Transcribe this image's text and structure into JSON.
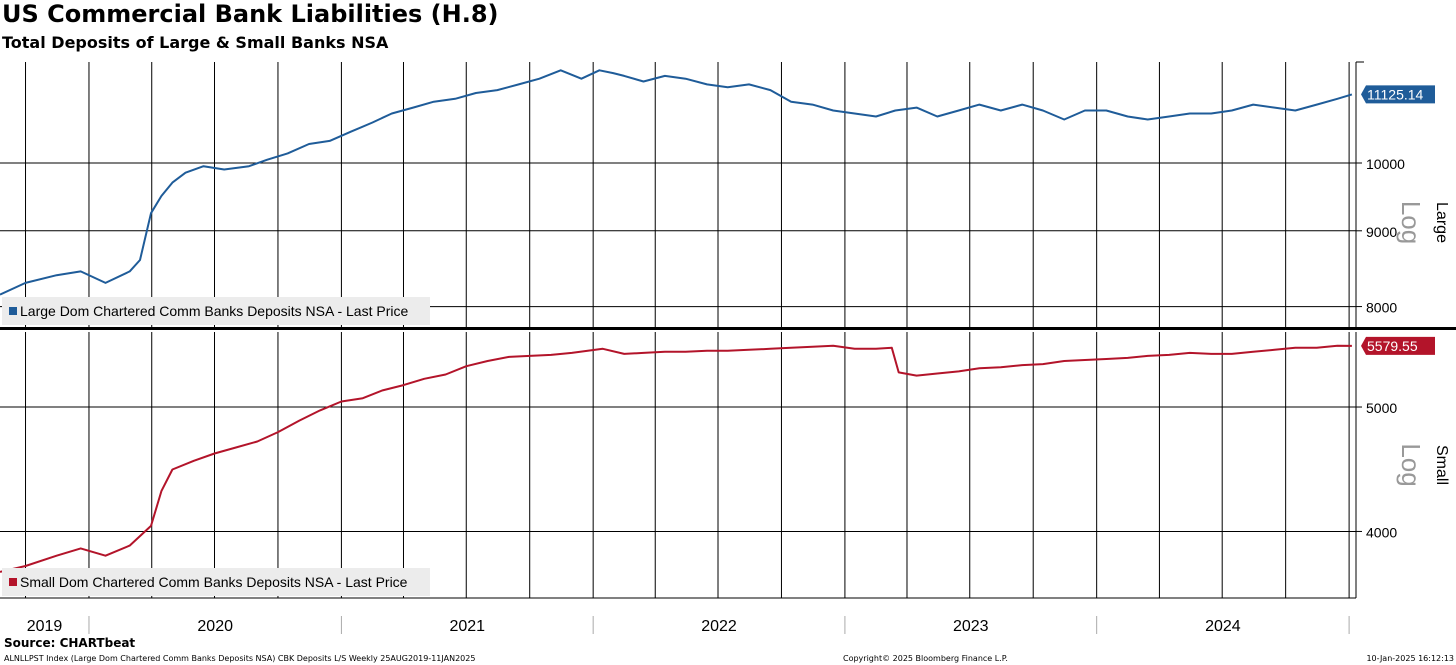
{
  "title": "US Commercial Bank Liabilities (H.8)",
  "subtitle": "Total Deposits of Large & Small Banks NSA",
  "source": "Source: CHARTbeat",
  "footer": {
    "ticker": "ALNLLPST Index (Large Dom Chartered Comm Banks Deposits NSA) CBK Deposits L/S  Weekly 25AUG2019-11JAN2025",
    "copyright": "Copyright© 2025 Bloomberg Finance L.P.",
    "date": "10-Jan-2025 16:12:13"
  },
  "chart_data": [
    {
      "type": "line",
      "panel": "Large",
      "scale_label": "Log",
      "log_scale": true,
      "grid": true,
      "legend_position": "bottom-left",
      "ylim": [
        7750,
        11700
      ],
      "y_ticks": [
        8000,
        9000,
        10000
      ],
      "x_labels": [
        "2019",
        "2020",
        "2021",
        "2022",
        "2023",
        "2024"
      ],
      "last_value": "11125.14",
      "color": "#1f5c99",
      "series": [
        {
          "name": "Large Dom Chartered Comm Banks Deposits NSA - Last Price",
          "x": [
            "2019-08-25",
            "2019-10-01",
            "2019-11-15",
            "2019-12-20",
            "2020-01-25",
            "2020-02-29",
            "2020-03-15",
            "2020-03-31",
            "2020-04-15",
            "2020-05-01",
            "2020-05-20",
            "2020-06-15",
            "2020-07-15",
            "2020-08-20",
            "2020-09-15",
            "2020-10-15",
            "2020-11-15",
            "2020-12-15",
            "2021-01-15",
            "2021-02-15",
            "2021-03-15",
            "2021-04-15",
            "2021-05-15",
            "2021-06-15",
            "2021-07-15",
            "2021-08-15",
            "2021-09-15",
            "2021-10-15",
            "2021-11-15",
            "2021-12-15",
            "2022-01-10",
            "2022-01-30",
            "2022-02-15",
            "2022-03-15",
            "2022-04-15",
            "2022-05-15",
            "2022-06-15",
            "2022-07-15",
            "2022-08-15",
            "2022-09-15",
            "2022-10-15",
            "2022-11-15",
            "2022-12-15",
            "2023-01-15",
            "2023-02-15",
            "2023-03-15",
            "2023-04-15",
            "2023-05-15",
            "2023-06-15",
            "2023-07-15",
            "2023-08-15",
            "2023-09-15",
            "2023-10-15",
            "2023-11-15",
            "2023-12-15",
            "2024-01-15",
            "2024-02-15",
            "2024-03-15",
            "2024-04-15",
            "2024-05-15",
            "2024-06-15",
            "2024-07-15",
            "2024-08-15",
            "2024-09-15",
            "2024-10-15",
            "2024-11-15",
            "2024-12-15",
            "2025-01-05"
          ],
          "y": [
            8150,
            8300,
            8400,
            8450,
            8300,
            8450,
            8600,
            9250,
            9500,
            9700,
            9850,
            9950,
            9900,
            9950,
            10050,
            10150,
            10300,
            10350,
            10500,
            10650,
            10800,
            10900,
            11000,
            11050,
            11150,
            11200,
            11300,
            11400,
            11550,
            11400,
            11550,
            11500,
            11450,
            11350,
            11450,
            11400,
            11300,
            11250,
            11300,
            11200,
            11000,
            10950,
            10850,
            10800,
            10750,
            10850,
            10900,
            10750,
            10850,
            10950,
            10850,
            10950,
            10850,
            10700,
            10850,
            10850,
            10750,
            10700,
            10750,
            10800,
            10800,
            10850,
            10950,
            10900,
            10850,
            10950,
            11050,
            11125.14
          ]
        }
      ]
    },
    {
      "type": "line",
      "panel": "Small",
      "scale_label": "Log",
      "log_scale": true,
      "grid": true,
      "legend_position": "bottom-left",
      "ylim": [
        3550,
        5720
      ],
      "y_ticks": [
        4000,
        5000
      ],
      "x_labels": [
        "2019",
        "2020",
        "2021",
        "2022",
        "2023",
        "2024"
      ],
      "last_value": "5579.55",
      "color": "#b3142a",
      "series": [
        {
          "name": "Small Dom Chartered Comm Banks Deposits NSA - Last Price",
          "x": [
            "2019-08-25",
            "2019-10-01",
            "2019-11-15",
            "2019-12-20",
            "2020-01-25",
            "2020-02-29",
            "2020-03-31",
            "2020-04-15",
            "2020-05-01",
            "2020-06-01",
            "2020-07-01",
            "2020-08-01",
            "2020-09-01",
            "2020-10-01",
            "2020-11-01",
            "2020-12-01",
            "2021-01-01",
            "2021-02-01",
            "2021-03-01",
            "2021-04-01",
            "2021-05-01",
            "2021-06-01",
            "2021-07-01",
            "2021-08-01",
            "2021-09-01",
            "2021-10-01",
            "2021-11-01",
            "2021-12-01",
            "2022-01-15",
            "2022-02-15",
            "2022-03-15",
            "2022-04-15",
            "2022-05-15",
            "2022-06-15",
            "2022-07-15",
            "2022-08-15",
            "2022-09-15",
            "2022-10-15",
            "2022-11-15",
            "2022-12-15",
            "2023-01-15",
            "2023-02-15",
            "2023-03-10",
            "2023-03-20",
            "2023-04-15",
            "2023-05-15",
            "2023-06-15",
            "2023-07-15",
            "2023-08-15",
            "2023-09-15",
            "2023-10-15",
            "2023-11-15",
            "2023-12-15",
            "2024-01-15",
            "2024-02-15",
            "2024-03-15",
            "2024-04-15",
            "2024-05-15",
            "2024-06-15",
            "2024-07-15",
            "2024-08-15",
            "2024-09-15",
            "2024-10-15",
            "2024-11-15",
            "2024-12-15",
            "2025-01-05"
          ],
          "y": [
            3720,
            3760,
            3830,
            3880,
            3830,
            3900,
            4040,
            4300,
            4470,
            4540,
            4600,
            4650,
            4700,
            4780,
            4880,
            4970,
            5050,
            5080,
            5150,
            5200,
            5260,
            5300,
            5380,
            5430,
            5470,
            5480,
            5490,
            5510,
            5550,
            5500,
            5510,
            5520,
            5520,
            5530,
            5530,
            5540,
            5550,
            5560,
            5570,
            5580,
            5550,
            5550,
            5560,
            5320,
            5290,
            5310,
            5330,
            5360,
            5370,
            5390,
            5400,
            5430,
            5440,
            5450,
            5460,
            5480,
            5490,
            5510,
            5500,
            5500,
            5520,
            5540,
            5560,
            5560,
            5580,
            5579.55
          ]
        }
      ]
    }
  ]
}
